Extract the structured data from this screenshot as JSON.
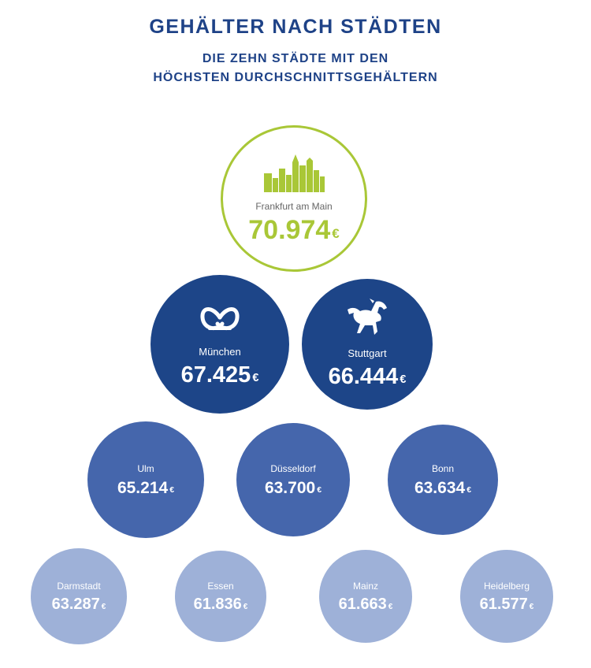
{
  "header": {
    "title": "GEHÄLTER NACH STÄDTEN",
    "subtitle_line1": "DIE ZEHN STÄDTE MIT DEN",
    "subtitle_line2": "HÖCHSTEN DURCHSCHNITTSGEHÄLTERN"
  },
  "colors": {
    "title": "#1e4287",
    "tier0_accent": "#a9c737",
    "tier1": "#1d4588",
    "tier2": "#4566ac",
    "tier3": "#9eb1d8"
  },
  "chart_data": {
    "type": "bubble",
    "title": "GEHÄLTER NACH STÄDTEN",
    "subtitle": "DIE ZEHN STÄDTE MIT DEN HÖCHSTEN DURCHSCHNITTSGEHÄLTERN",
    "unit": "€",
    "cities": [
      {
        "name": "Frankfurt am Main",
        "value": 70974,
        "label": "70.974",
        "tier": 0,
        "icon": "skyline-icon"
      },
      {
        "name": "München",
        "value": 67425,
        "label": "67.425",
        "tier": 1,
        "icon": "pretzel-icon"
      },
      {
        "name": "Stuttgart",
        "value": 66444,
        "label": "66.444",
        "tier": 1,
        "icon": "horse-icon"
      },
      {
        "name": "Ulm",
        "value": 65214,
        "label": "65.214",
        "tier": 2
      },
      {
        "name": "Düsseldorf",
        "value": 63700,
        "label": "63.700",
        "tier": 2
      },
      {
        "name": "Bonn",
        "value": 63634,
        "label": "63.634",
        "tier": 2
      },
      {
        "name": "Darmstadt",
        "value": 63287,
        "label": "63.287",
        "tier": 3
      },
      {
        "name": "Essen",
        "value": 61836,
        "label": "61.836",
        "tier": 3
      },
      {
        "name": "Mainz",
        "value": 61663,
        "label": "61.663",
        "tier": 3
      },
      {
        "name": "Heidelberg",
        "value": 61577,
        "label": "61.577",
        "tier": 3
      }
    ]
  }
}
